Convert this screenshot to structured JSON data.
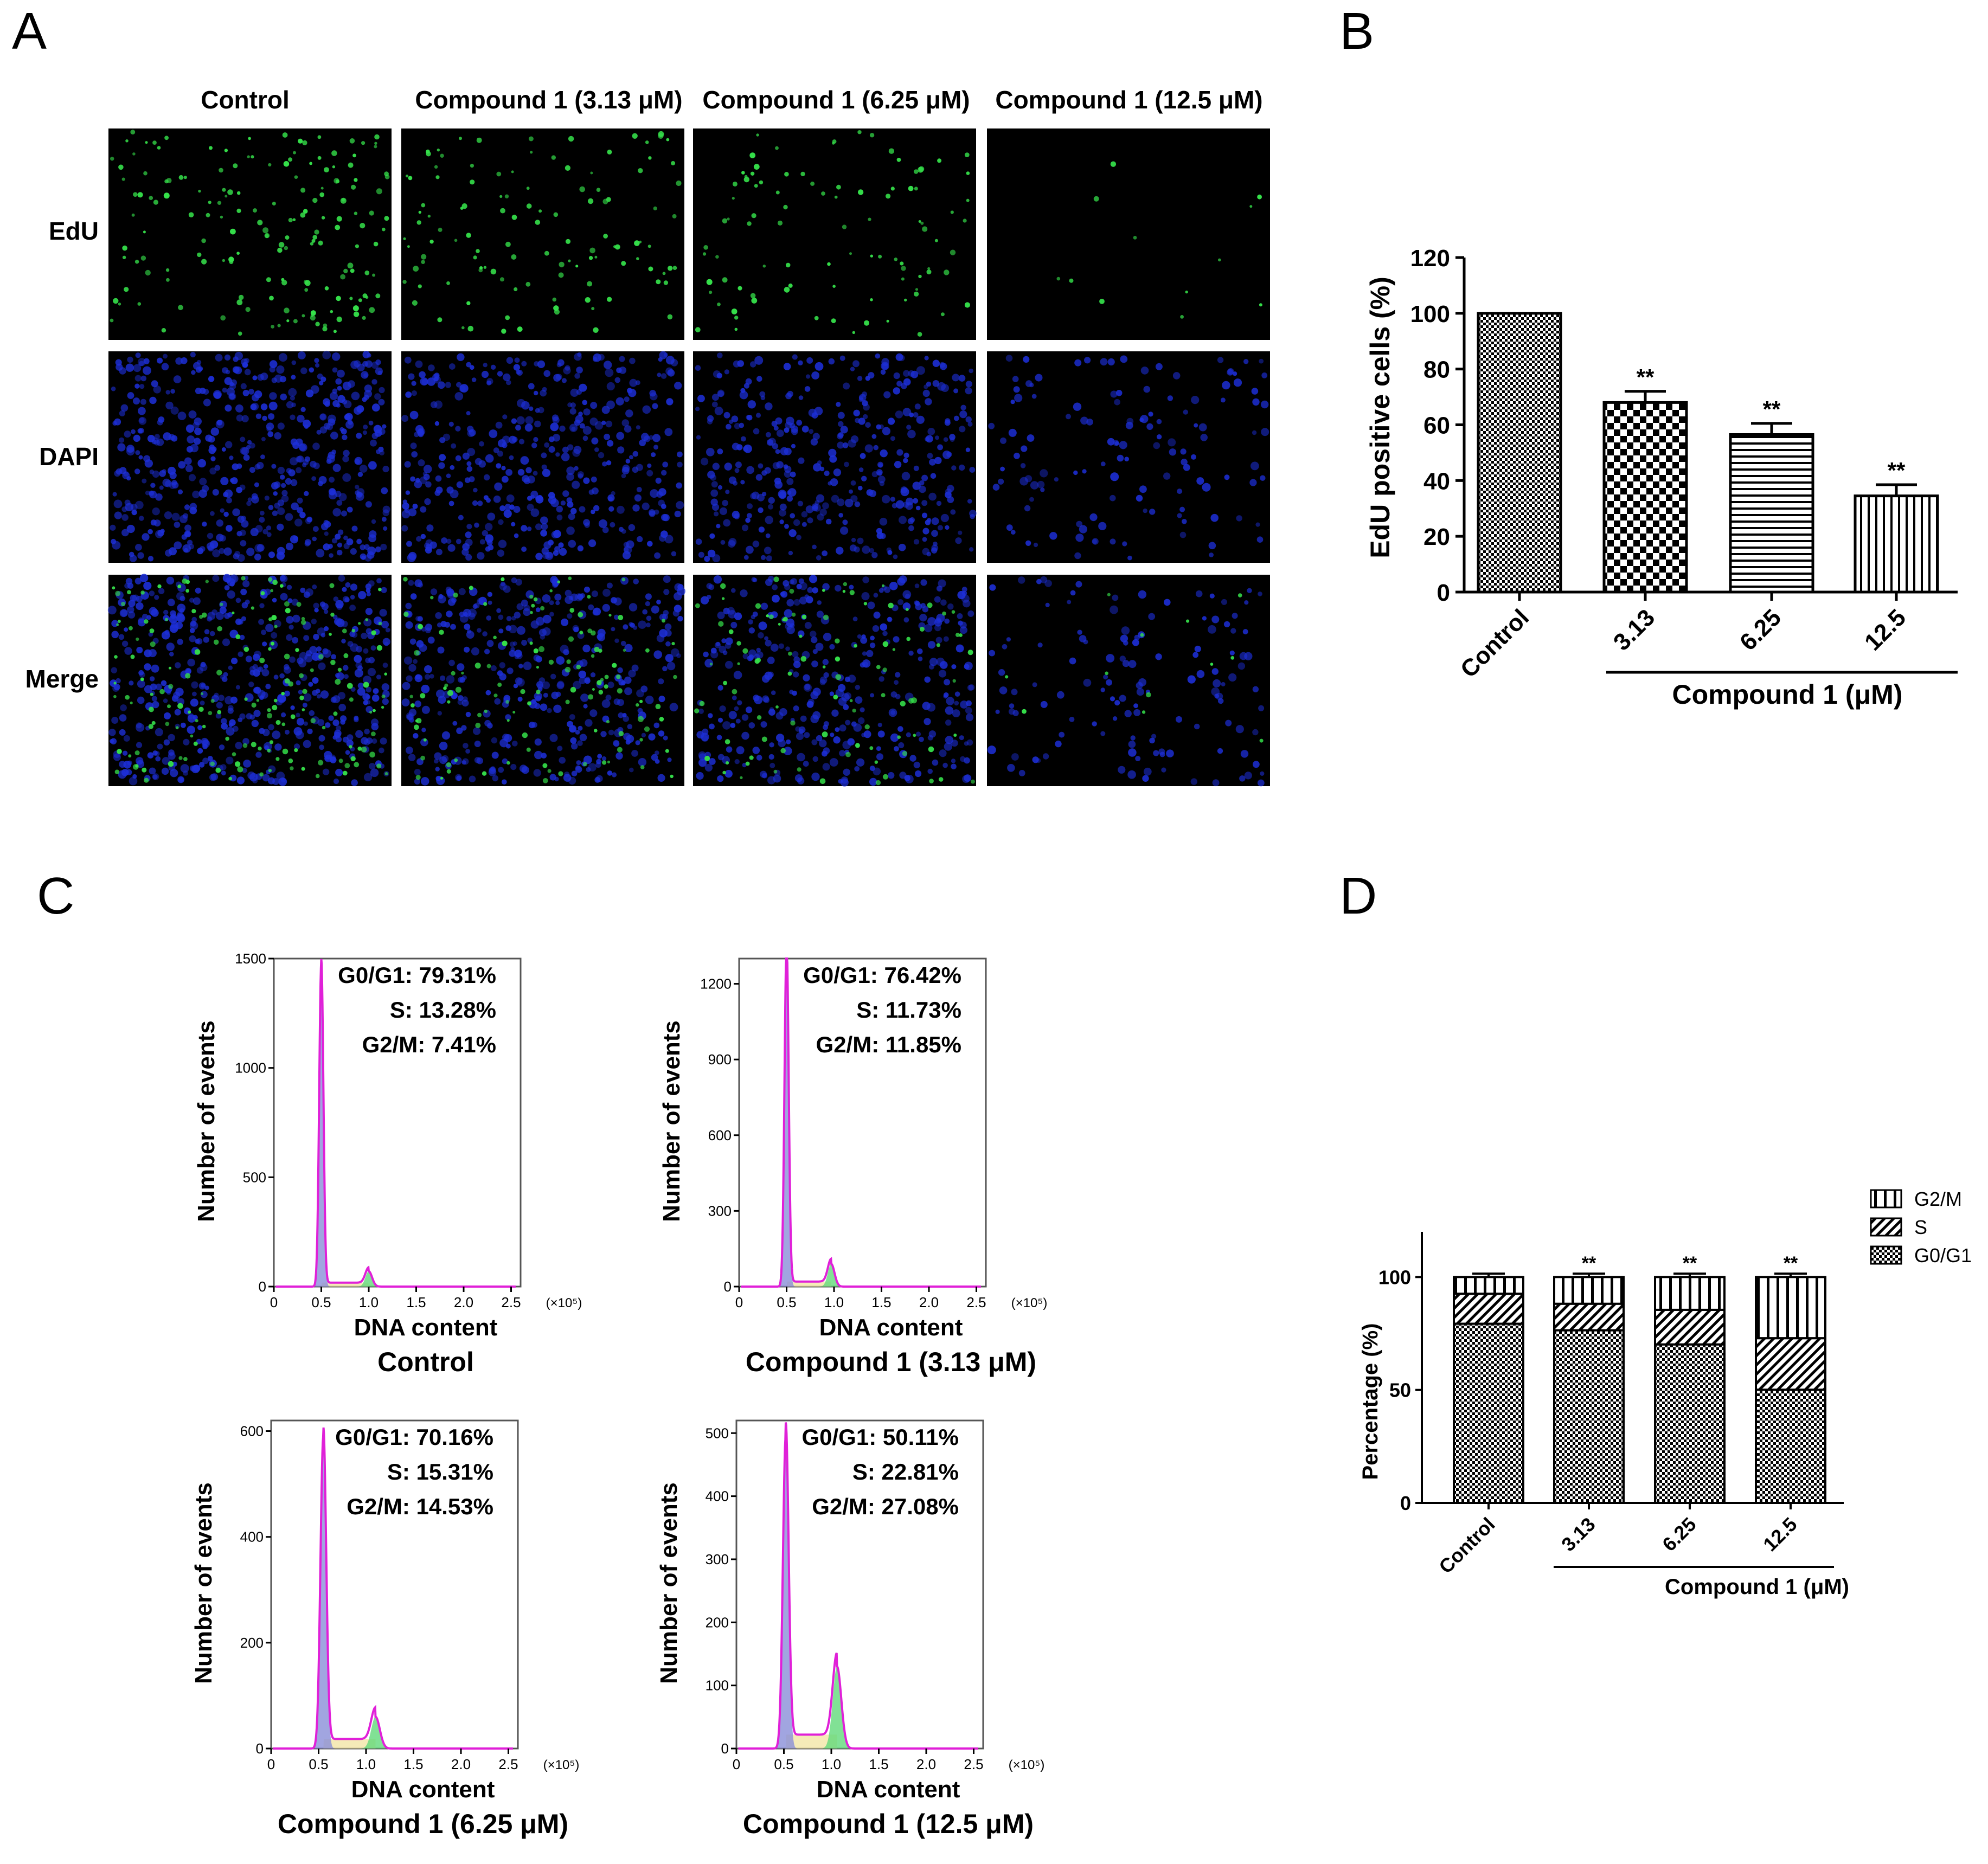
{
  "panel_letters": [
    "A",
    "B",
    "C",
    "D"
  ],
  "panel_a": {
    "columns": [
      "Control",
      "Compound 1 (3.13 μM)",
      "Compound 1 (6.25 μM)",
      "Compound 1 (12.5 μM)"
    ],
    "rows": [
      "EdU",
      "DAPI",
      "Merge"
    ],
    "relative_edu_density": [
      1.0,
      0.68,
      0.56,
      0.07
    ],
    "relative_dapi_density": [
      1.0,
      0.8,
      0.75,
      0.25
    ],
    "colors": {
      "edu": "#35e04a",
      "dapi": "#1d2fd9",
      "background": "#000000"
    }
  },
  "chart_data": [
    {
      "panel": "B",
      "type": "bar",
      "categories": [
        "Control",
        "3.13",
        "6.25",
        "12.5"
      ],
      "values": [
        100,
        68,
        56.5,
        34.5
      ],
      "errors": [
        0,
        4,
        4,
        4
      ],
      "significance": [
        "",
        "**",
        "**",
        "**"
      ],
      "patterns": [
        "fine-check",
        "coarse-check",
        "horizontal",
        "vertical"
      ],
      "ylabel": "EdU positive cells (%)",
      "xlabel": "Compound 1 (μM)",
      "ylim": [
        0,
        120
      ],
      "yticks": [
        "0",
        "20",
        "40",
        "60",
        "80",
        "100",
        "120"
      ]
    },
    {
      "panel": "C",
      "type": "area",
      "x_unit": "(×10⁵)",
      "xlabel": "DNA content",
      "ylabel": "Number of events",
      "xticks": [
        "0",
        "0.5",
        "1.0",
        "1.5",
        "2.0",
        "2.5"
      ],
      "plots": [
        {
          "title": "Control",
          "ymax": 1500,
          "yticks": [
            "0",
            "500",
            "1000",
            "1500"
          ],
          "g1_peak": 0.5,
          "g1_height": 1480,
          "g2_peak": 1.0,
          "g2_height": 70,
          "s_level": 18,
          "stats": [
            "G0/G1: 79.31%",
            "S: 13.28%",
            "G2/M: 7.41%"
          ]
        },
        {
          "title": "Compound 1 (3.13 μM)",
          "ymax": 1300,
          "yticks": [
            "0",
            "300",
            "600",
            "900",
            "1200"
          ],
          "g1_peak": 0.5,
          "g1_height": 1350,
          "g2_peak": 0.97,
          "g2_height": 90,
          "s_level": 20,
          "stats": [
            "G0/G1: 76.42%",
            "S: 11.73%",
            "G2/M: 11.85%"
          ]
        },
        {
          "title": "Compound 1 (6.25 μM)",
          "ymax": 620,
          "yticks": [
            "0",
            "200",
            "400",
            "600"
          ],
          "g1_peak": 0.55,
          "g1_height": 590,
          "g2_peak": 1.1,
          "g2_height": 60,
          "s_level": 18,
          "stats": [
            "G0/G1: 70.16%",
            "S: 15.31%",
            "G2/M: 14.53%"
          ]
        },
        {
          "title": "Compound 1 (12.5 μM)",
          "ymax": 520,
          "yticks": [
            "0",
            "100",
            "200",
            "300",
            "400",
            "500"
          ],
          "g1_peak": 0.52,
          "g1_height": 495,
          "g2_peak": 1.06,
          "g2_height": 130,
          "s_level": 22,
          "stats": [
            "G0/G1: 50.11%",
            "S: 22.81%",
            "G2/M: 27.08%"
          ]
        }
      ]
    },
    {
      "panel": "D",
      "type": "bar",
      "stacked": true,
      "categories": [
        "Control",
        "3.13",
        "6.25",
        "12.5"
      ],
      "series": [
        {
          "name": "G0/G1",
          "values": [
            79.31,
            76.42,
            70.16,
            50.11
          ]
        },
        {
          "name": "S",
          "values": [
            13.28,
            11.73,
            15.31,
            22.81
          ]
        },
        {
          "name": "G2/M",
          "values": [
            7.41,
            11.85,
            14.53,
            27.08
          ]
        }
      ],
      "significance": [
        "",
        "**",
        "**",
        "**"
      ],
      "ylabel": "Percentage (%)",
      "xlabel": "Compound 1 (μM)",
      "ylim": [
        0,
        120
      ],
      "yticks": [
        "0",
        "50",
        "100"
      ],
      "legend_order": [
        "G2/M",
        "S",
        "G0/G1"
      ],
      "legend_placement": "top-right"
    }
  ]
}
